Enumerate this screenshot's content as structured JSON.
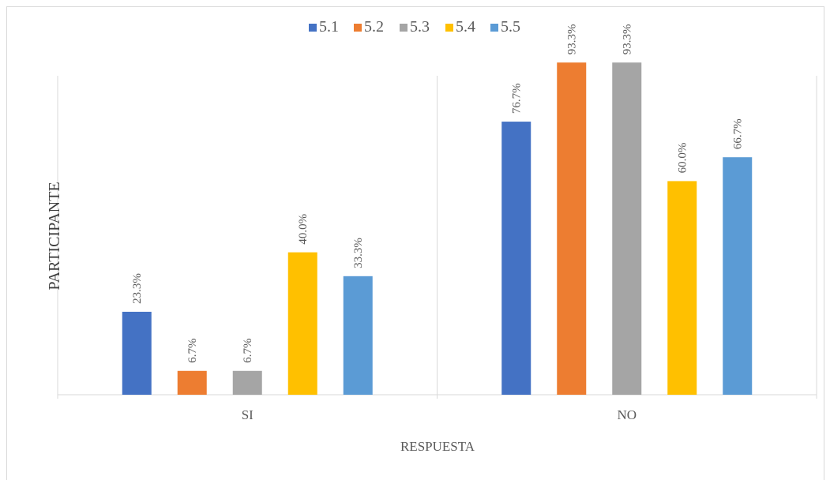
{
  "chart_data": {
    "type": "bar",
    "categories": [
      "SI",
      "NO"
    ],
    "series": [
      {
        "name": "5.1",
        "color": "#4472c4",
        "values": [
          23.3,
          76.7
        ],
        "labels": [
          "23.3%",
          "76.7%"
        ]
      },
      {
        "name": "5.2",
        "color": "#ed7d31",
        "values": [
          6.7,
          93.3
        ],
        "labels": [
          "6.7%",
          "93.3%"
        ]
      },
      {
        "name": "5.3",
        "color": "#a5a5a5",
        "values": [
          6.7,
          93.3
        ],
        "labels": [
          "6.7%",
          "93.3%"
        ]
      },
      {
        "name": "5.4",
        "color": "#ffc000",
        "values": [
          40.0,
          60.0
        ],
        "labels": [
          "40.0%",
          "60.0%"
        ]
      },
      {
        "name": "5.5",
        "color": "#5b9bd5",
        "values": [
          33.3,
          66.7
        ],
        "labels": [
          "33.3%",
          "66.7%"
        ]
      }
    ],
    "xlabel": "RESPUESTA",
    "ylabel": "PARTICIPANTE",
    "ylim": [
      0,
      100
    ],
    "legend_position": "top",
    "grid": false,
    "axis_line_color": "#d9d9d9"
  }
}
